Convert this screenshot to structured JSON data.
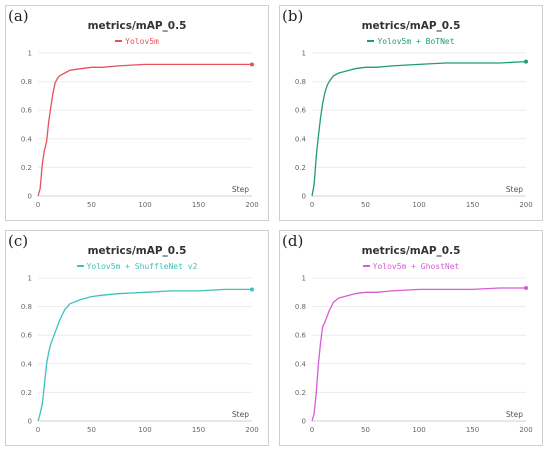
{
  "chart_data": [
    {
      "type": "line",
      "panel_label": "(a)",
      "title": "metrics/mAP_0.5",
      "xlabel": "Step",
      "ylabel": "",
      "xlim": [
        0,
        200
      ],
      "ylim": [
        0,
        1
      ],
      "x_ticks": [
        "0",
        "50",
        "100",
        "150",
        "200"
      ],
      "y_ticks": [
        "0",
        "0.2",
        "0.4",
        "0.6",
        "0.8",
        "1"
      ],
      "grid": true,
      "legend_position": "top-center",
      "series": [
        {
          "name": "Yolov5m",
          "color": "#e8505b",
          "x": [
            0,
            2,
            4,
            6,
            8,
            10,
            12,
            14,
            16,
            18,
            20,
            25,
            30,
            40,
            50,
            60,
            75,
            100,
            125,
            150,
            175,
            200
          ],
          "y": [
            0,
            0.05,
            0.22,
            0.32,
            0.38,
            0.52,
            0.62,
            0.72,
            0.79,
            0.82,
            0.84,
            0.86,
            0.88,
            0.89,
            0.9,
            0.9,
            0.91,
            0.92,
            0.92,
            0.92,
            0.92,
            0.92
          ]
        }
      ]
    },
    {
      "type": "line",
      "panel_label": "(b)",
      "title": "metrics/mAP_0.5",
      "xlabel": "Step",
      "ylabel": "",
      "xlim": [
        0,
        200
      ],
      "ylim": [
        0,
        1
      ],
      "x_ticks": [
        "0",
        "50",
        "100",
        "150",
        "200"
      ],
      "y_ticks": [
        "0",
        "0.2",
        "0.4",
        "0.6",
        "0.8",
        "1"
      ],
      "grid": true,
      "legend_position": "top-center",
      "series": [
        {
          "name": "Yolov5m + BoTNet",
          "color": "#1e9e6a",
          "x": [
            0,
            2,
            4,
            6,
            8,
            10,
            12,
            14,
            16,
            18,
            20,
            25,
            30,
            40,
            50,
            60,
            75,
            100,
            125,
            150,
            175,
            200
          ],
          "y": [
            0,
            0.08,
            0.28,
            0.42,
            0.55,
            0.65,
            0.72,
            0.77,
            0.8,
            0.82,
            0.84,
            0.86,
            0.87,
            0.89,
            0.9,
            0.9,
            0.91,
            0.92,
            0.93,
            0.93,
            0.93,
            0.94
          ]
        }
      ]
    },
    {
      "type": "line",
      "panel_label": "(c)",
      "title": "metrics/mAP_0.5",
      "xlabel": "Step",
      "ylabel": "",
      "xlim": [
        0,
        200
      ],
      "ylim": [
        0,
        1
      ],
      "x_ticks": [
        "0",
        "50",
        "100",
        "150",
        "200"
      ],
      "y_ticks": [
        "0",
        "0.2",
        "0.4",
        "0.6",
        "0.8",
        "1"
      ],
      "grid": true,
      "legend_position": "top-center",
      "series": [
        {
          "name": "Yolov5m + ShuffleNet v2",
          "color": "#3cc1bd",
          "x": [
            0,
            2,
            4,
            6,
            8,
            10,
            12,
            14,
            16,
            18,
            20,
            25,
            30,
            40,
            50,
            60,
            75,
            100,
            125,
            150,
            175,
            200
          ],
          "y": [
            0,
            0.05,
            0.12,
            0.25,
            0.4,
            0.48,
            0.54,
            0.58,
            0.62,
            0.66,
            0.7,
            0.78,
            0.82,
            0.85,
            0.87,
            0.88,
            0.89,
            0.9,
            0.91,
            0.91,
            0.92,
            0.92
          ]
        }
      ]
    },
    {
      "type": "line",
      "panel_label": "(d)",
      "title": "metrics/mAP_0.5",
      "xlabel": "Step",
      "ylabel": "",
      "xlim": [
        0,
        200
      ],
      "ylim": [
        0,
        1
      ],
      "x_ticks": [
        "0",
        "50",
        "100",
        "150",
        "200"
      ],
      "y_ticks": [
        "0",
        "0.2",
        "0.4",
        "0.6",
        "0.8",
        "1"
      ],
      "grid": true,
      "legend_position": "top-center",
      "series": [
        {
          "name": "Yolov5m + GhostNet",
          "color": "#d75bd8",
          "x": [
            0,
            2,
            4,
            6,
            8,
            10,
            12,
            14,
            16,
            18,
            20,
            25,
            30,
            40,
            50,
            60,
            75,
            100,
            125,
            150,
            175,
            200
          ],
          "y": [
            0,
            0.05,
            0.2,
            0.4,
            0.55,
            0.66,
            0.69,
            0.73,
            0.77,
            0.8,
            0.83,
            0.86,
            0.87,
            0.89,
            0.9,
            0.9,
            0.91,
            0.92,
            0.92,
            0.92,
            0.93,
            0.93
          ]
        }
      ]
    }
  ]
}
